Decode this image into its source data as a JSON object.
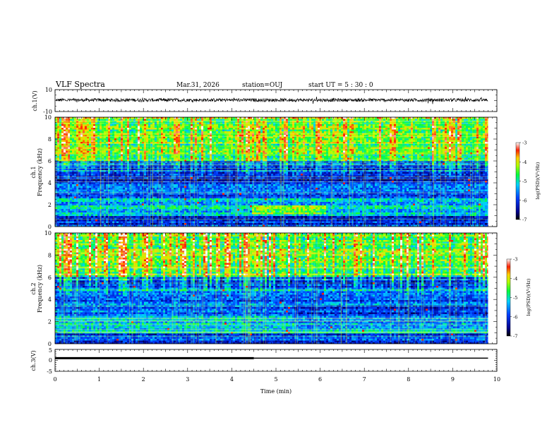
{
  "header": {
    "title": "VLF Spectra",
    "date": "Mar.31, 2026",
    "station": "station=OUJ",
    "start": "start  UT =   5 : 30 : 0"
  },
  "chart_data": [
    {
      "type": "line",
      "name": "ch1-waveform",
      "ylabel": "ch.1(V)",
      "ylim": [
        -10,
        10
      ],
      "yticks": [
        "10",
        "-10"
      ],
      "xlim": [
        0,
        10
      ],
      "baseline_v": 0.5,
      "noise_amplitude_v": 1.5,
      "data_end_min": 9.8
    },
    {
      "type": "heatmap",
      "name": "ch1-spectrogram",
      "channel_label": "ch.1",
      "ylabel": "Frequency  (kHz)",
      "ylim": [
        0,
        10
      ],
      "yticks": [
        "0",
        "2",
        "4",
        "6",
        "8",
        "10"
      ],
      "xlim": [
        0,
        10
      ],
      "data_end_min": 9.8,
      "colorbar": {
        "label": "log(PSD)(V²/Hz)",
        "ticks": [
          "-3",
          "-4",
          "-5",
          "-6",
          "-7"
        ],
        "range": [
          -7,
          -3
        ]
      }
    },
    {
      "type": "heatmap",
      "name": "ch2-spectrogram",
      "channel_label": "ch.2",
      "ylabel": "Frequency  (kHz)",
      "ylim": [
        0,
        10
      ],
      "yticks": [
        "0",
        "2",
        "4",
        "6",
        "8",
        "10"
      ],
      "xlim": [
        0,
        10
      ],
      "data_end_min": 9.8,
      "colorbar": {
        "label": "log(PSD)(V²/Hz)",
        "ticks": [
          "-3",
          "-4",
          "-5",
          "-6",
          "-7"
        ],
        "range": [
          -7,
          -3
        ]
      }
    },
    {
      "type": "line",
      "name": "ch3-trace",
      "ylabel": "ch.3(V)",
      "ylim": [
        -5,
        5
      ],
      "yticks": [
        "5",
        "0",
        "-5"
      ],
      "xlim": [
        0,
        10
      ],
      "segments": [
        {
          "x0": 0,
          "x1": 4.5,
          "y": 1.0,
          "weight": "thick"
        },
        {
          "x0": 4.5,
          "x1": 9.8,
          "y": 1.0,
          "weight": "thin"
        }
      ]
    }
  ],
  "xaxis": {
    "label": "Time  (min)",
    "ticks": [
      "0",
      "1",
      "2",
      "3",
      "4",
      "5",
      "6",
      "7",
      "8",
      "9",
      "10"
    ]
  }
}
